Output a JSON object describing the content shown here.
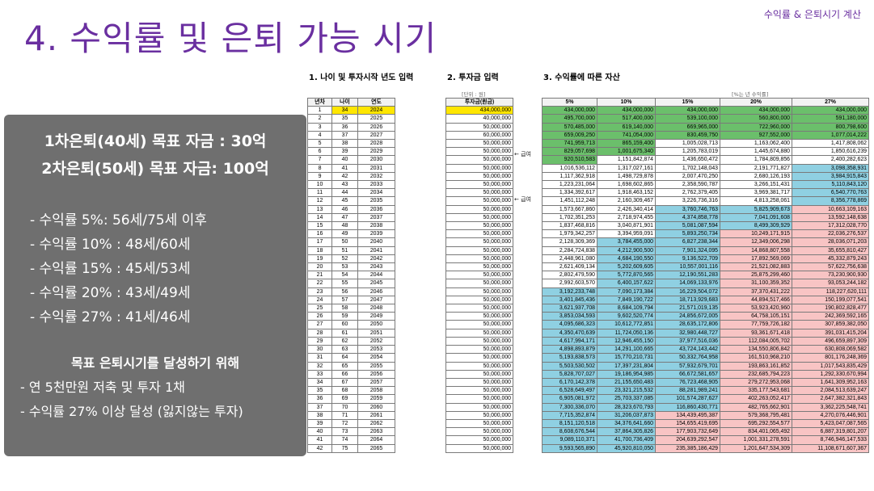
{
  "header_tag": "수익률 & 은퇴시기 계산",
  "title": "4. 수익률 및 은퇴 가능 시기",
  "box": {
    "goal1": "1차은퇴(40세) 목표 자금 : 30억",
    "goal2": "2차은퇴(50세) 목표 자금: 100억",
    "rates": [
      "- 수익률    5%: 56세/75세 이후",
      "- 수익률 10% : 48세/60세",
      "- 수익률 15% : 45세/53세",
      "- 수익률 20% : 43세/49세",
      "- 수익률 27% : 41세/46세"
    ],
    "goal_title": "목표 은퇴시기를 달성하기 위해",
    "actions": [
      "- 연 5천만원 저축 및 투자 1채",
      "- 수익률 27% 이상 달성 (잃지않는 투자)"
    ]
  },
  "sections": {
    "s1": "1. 나이 및 투자시작 년도 입력",
    "s2": "2. 투자금 입력",
    "s3": "3. 수익률에 따른 자산",
    "unit": "[단위 : 원]",
    "rate_note": "[%는 년 수익률]",
    "arrow1": "← 급여",
    "arrow2": "← 급여"
  },
  "t1_headers": [
    "년차",
    "나이",
    "연도"
  ],
  "t2_header": "투자금(원금)",
  "t3_headers": [
    "5%",
    "10%",
    "15%",
    "20%",
    "27%"
  ],
  "rows": [
    [
      "1",
      "34",
      "2024",
      "434,000,000",
      "434,000,000",
      "434,000,000",
      "434,000,000",
      "434,000,000",
      "434,000,000"
    ],
    [
      "2",
      "35",
      "2025",
      "40,000,000",
      "495,700,000",
      "517,400,000",
      "539,100,000",
      "560,800,000",
      "591,180,000"
    ],
    [
      "3",
      "36",
      "2026",
      "50,000,000",
      "570,485,000",
      "619,140,000",
      "669,965,000",
      "722,960,000",
      "800,798,600"
    ],
    [
      "4",
      "37",
      "2027",
      "60,000,000",
      "659,009,250",
      "741,054,000",
      "830,459,750",
      "927,552,000",
      "1,077,014,222"
    ],
    [
      "5",
      "38",
      "2028",
      "50,000,000",
      "741,959,713",
      "865,159,400",
      "1,005,028,713",
      "1,163,062,400",
      "1,417,808,062"
    ],
    [
      "6",
      "39",
      "2029",
      "50,000,000",
      "829,057,698",
      "1,001,675,340",
      "1,205,783,019",
      "1,445,674,880",
      "1,850,616,239"
    ],
    [
      "7",
      "40",
      "2030",
      "50,000,000",
      "920,510,583",
      "1,151,842,874",
      "1,436,650,472",
      "1,784,809,856",
      "2,400,282,623"
    ],
    [
      "8",
      "41",
      "2031",
      "50,000,000",
      "1,016,536,112",
      "1,317,027,161",
      "1,702,148,043",
      "2,191,771,827",
      "3,098,358,931"
    ],
    [
      "9",
      "42",
      "2032",
      "50,000,000",
      "1,117,362,918",
      "1,498,729,878",
      "2,007,470,250",
      "2,680,126,193",
      "3,984,915,843"
    ],
    [
      "10",
      "43",
      "2033",
      "50,000,000",
      "1,223,231,064",
      "1,698,602,865",
      "2,358,590,787",
      "3,266,151,431",
      "5,110,843,120"
    ],
    [
      "11",
      "44",
      "2034",
      "50,000,000",
      "1,334,392,617",
      "1,918,463,152",
      "2,762,379,405",
      "3,969,381,717",
      "6,540,770,763"
    ],
    [
      "12",
      "45",
      "2035",
      "50,000,000",
      "1,451,112,248",
      "2,160,309,467",
      "3,226,736,316",
      "4,813,258,061",
      "8,356,778,869"
    ],
    [
      "13",
      "46",
      "2036",
      "50,000,000",
      "1,573,667,860",
      "2,426,340,414",
      "3,760,746,763",
      "5,825,909,673",
      "10,663,109,163"
    ],
    [
      "14",
      "47",
      "2037",
      "50,000,000",
      "1,702,351,253",
      "2,718,974,455",
      "4,374,858,778",
      "7,041,091,608",
      "13,592,148,638"
    ],
    [
      "15",
      "48",
      "2038",
      "50,000,000",
      "1,837,468,816",
      "3,040,871,901",
      "5,081,087,594",
      "8,499,309,929",
      "17,312,028,770"
    ],
    [
      "16",
      "49",
      "2039",
      "50,000,000",
      "1,979,342,257",
      "3,394,959,091",
      "5,893,250,734",
      "10,249,171,915",
      "22,036,276,537"
    ],
    [
      "17",
      "50",
      "2040",
      "50,000,000",
      "2,128,309,369",
      "3,784,455,000",
      "6,827,238,344",
      "12,349,006,298",
      "28,036,071,203"
    ],
    [
      "18",
      "51",
      "2041",
      "50,000,000",
      "2,284,724,838",
      "4,212,900,500",
      "7,901,324,095",
      "14,868,807,558",
      "35,655,810,427"
    ],
    [
      "19",
      "52",
      "2042",
      "50,000,000",
      "2,448,961,080",
      "4,684,190,550",
      "9,136,522,709",
      "17,892,569,069",
      "45,332,879,243"
    ],
    [
      "20",
      "53",
      "2043",
      "50,000,000",
      "2,621,409,134",
      "5,202,609,605",
      "10,557,001,116",
      "21,521,082,883",
      "57,622,756,638"
    ],
    [
      "21",
      "54",
      "2044",
      "50,000,000",
      "2,802,479,590",
      "5,772,870,565",
      "12,190,551,283",
      "25,875,299,460",
      "73,230,900,930"
    ],
    [
      "22",
      "55",
      "2045",
      "50,000,000",
      "2,992,603,570",
      "6,400,157,622",
      "14,069,133,976",
      "31,100,359,352",
      "93,053,244,182"
    ],
    [
      "23",
      "56",
      "2046",
      "50,000,000",
      "3,192,233,748",
      "7,090,173,384",
      "16,229,504,072",
      "37,370,431,222",
      "118,227,620,111"
    ],
    [
      "24",
      "57",
      "2047",
      "50,000,000",
      "3,401,845,436",
      "7,849,190,722",
      "18,713,929,683",
      "44,894,517,466",
      "150,199,077,541"
    ],
    [
      "25",
      "58",
      "2048",
      "50,000,000",
      "3,621,937,708",
      "8,684,109,794",
      "21,571,019,135",
      "53,923,420,960",
      "190,802,828,477"
    ],
    [
      "26",
      "59",
      "2049",
      "50,000,000",
      "3,853,034,593",
      "9,602,520,774",
      "24,856,672,005",
      "64,758,105,151",
      "242,369,592,165"
    ],
    [
      "27",
      "60",
      "2050",
      "50,000,000",
      "4,095,686,323",
      "10,612,772,851",
      "28,635,172,806",
      "77,759,726,182",
      "307,859,382,050"
    ],
    [
      "28",
      "61",
      "2051",
      "50,000,000",
      "4,350,470,639",
      "11,724,050,136",
      "32,980,448,727",
      "93,361,671,418",
      "391,031,415,204"
    ],
    [
      "29",
      "62",
      "2052",
      "50,000,000",
      "4,617,994,171",
      "12,946,455,150",
      "37,977,516,036",
      "112,084,005,702",
      "496,659,897,309"
    ],
    [
      "30",
      "63",
      "2053",
      "50,000,000",
      "4,898,893,879",
      "14,291,100,665",
      "43,724,143,442",
      "134,550,806,842",
      "630,808,069,582"
    ],
    [
      "31",
      "64",
      "2054",
      "50,000,000",
      "5,193,838,573",
      "15,770,210,731",
      "50,332,764,958",
      "161,510,968,210",
      "801,176,248,369"
    ],
    [
      "32",
      "65",
      "2055",
      "50,000,000",
      "5,503,530,502",
      "17,397,231,804",
      "57,932,679,701",
      "193,863,161,852",
      "1,017,543,835,429"
    ],
    [
      "33",
      "66",
      "2056",
      "50,000,000",
      "5,828,707,027",
      "19,186,954,985",
      "66,672,581,657",
      "232,685,794,223",
      "1,292,330,670,994"
    ],
    [
      "34",
      "67",
      "2057",
      "50,000,000",
      "6,170,142,378",
      "21,155,650,483",
      "76,723,468,905",
      "279,272,953,068",
      "1,641,309,952,163"
    ],
    [
      "35",
      "68",
      "2058",
      "50,000,000",
      "6,528,649,497",
      "23,321,215,532",
      "88,281,989,241",
      "335,177,543,681",
      "2,084,513,639,247"
    ],
    [
      "36",
      "69",
      "2059",
      "50,000,000",
      "6,905,081,972",
      "25,703,337,085",
      "101,574,287,627",
      "402,263,052,417",
      "2,647,382,321,843"
    ],
    [
      "37",
      "70",
      "2060",
      "50,000,000",
      "7,300,336,070",
      "28,323,670,793",
      "116,860,430,771",
      "482,765,662,901",
      "3,362,225,548,741"
    ],
    [
      "38",
      "71",
      "2061",
      "50,000,000",
      "7,715,352,874",
      "31,206,037,873",
      "134,439,495,387",
      "579,368,795,481",
      "4,270,076,446,901"
    ],
    [
      "39",
      "72",
      "2062",
      "50,000,000",
      "8,151,120,518",
      "34,376,641,660",
      "154,655,419,695",
      "695,292,554,577",
      "5,423,047,087,565"
    ],
    [
      "40",
      "73",
      "2063",
      "50,000,000",
      "8,608,676,544",
      "37,864,305,826",
      "177,903,732,649",
      "834,401,065,492",
      "6,887,319,801,207"
    ],
    [
      "41",
      "74",
      "2064",
      "50,000,000",
      "9,089,110,371",
      "41,700,736,409",
      "204,639,292,547",
      "1,001,331,278,591",
      "8,746,946,147,533"
    ],
    [
      "42",
      "75",
      "2065",
      "50,000,000",
      "9,593,565,890",
      "45,920,810,050",
      "235,385,186,429",
      "1,201,647,534,309",
      "11,108,671,607,367"
    ]
  ],
  "colors": {
    "purple": "#6a2fa0",
    "yellow": "#ffe600",
    "green": "#6bbf6b",
    "blue": "#8fd0e2",
    "pink": "#f8c4c4"
  }
}
